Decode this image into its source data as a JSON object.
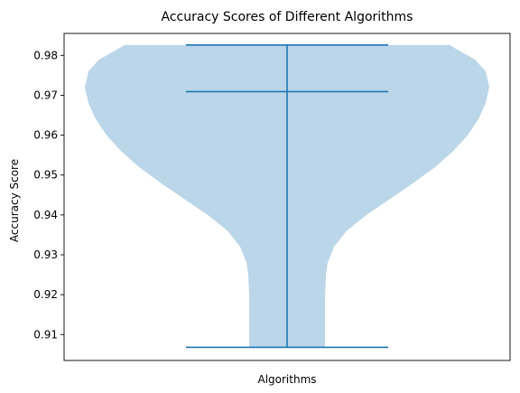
{
  "chart_data": {
    "type": "violin",
    "title": "Accuracy Scores of Different Algorithms",
    "xlabel": "Algorithms",
    "ylabel": "Accuracy Score",
    "ylim": [
      0.9035,
      0.9855
    ],
    "yticks": [
      0.91,
      0.92,
      0.93,
      0.94,
      0.95,
      0.96,
      0.97,
      0.98
    ],
    "ytick_labels": [
      "0.91",
      "0.92",
      "0.93",
      "0.94",
      "0.95",
      "0.96",
      "0.97",
      "0.98"
    ],
    "grid": false,
    "violin": {
      "min": 0.9068,
      "median": 0.9709,
      "max": 0.9826,
      "density_profile": [
        {
          "y": 0.9068,
          "half_width": 0.21
        },
        {
          "y": 0.91,
          "half_width": 0.21
        },
        {
          "y": 0.915,
          "half_width": 0.21
        },
        {
          "y": 0.92,
          "half_width": 0.21
        },
        {
          "y": 0.925,
          "half_width": 0.215
        },
        {
          "y": 0.928,
          "half_width": 0.225
        },
        {
          "y": 0.932,
          "half_width": 0.26
        },
        {
          "y": 0.936,
          "half_width": 0.33
        },
        {
          "y": 0.94,
          "half_width": 0.44
        },
        {
          "y": 0.944,
          "half_width": 0.57
        },
        {
          "y": 0.948,
          "half_width": 0.7
        },
        {
          "y": 0.952,
          "half_width": 0.82
        },
        {
          "y": 0.956,
          "half_width": 0.92
        },
        {
          "y": 0.96,
          "half_width": 1.0
        },
        {
          "y": 0.964,
          "half_width": 1.06
        },
        {
          "y": 0.968,
          "half_width": 1.1
        },
        {
          "y": 0.972,
          "half_width": 1.12
        },
        {
          "y": 0.976,
          "half_width": 1.1
        },
        {
          "y": 0.979,
          "half_width": 1.04
        },
        {
          "y": 0.981,
          "half_width": 0.96
        },
        {
          "y": 0.9826,
          "half_width": 0.9
        }
      ]
    },
    "colors": {
      "body": "#1f77b4",
      "body_opacity": 0.3,
      "lines": "#1f77b4",
      "axis": "#000000",
      "text": "#000000"
    }
  }
}
